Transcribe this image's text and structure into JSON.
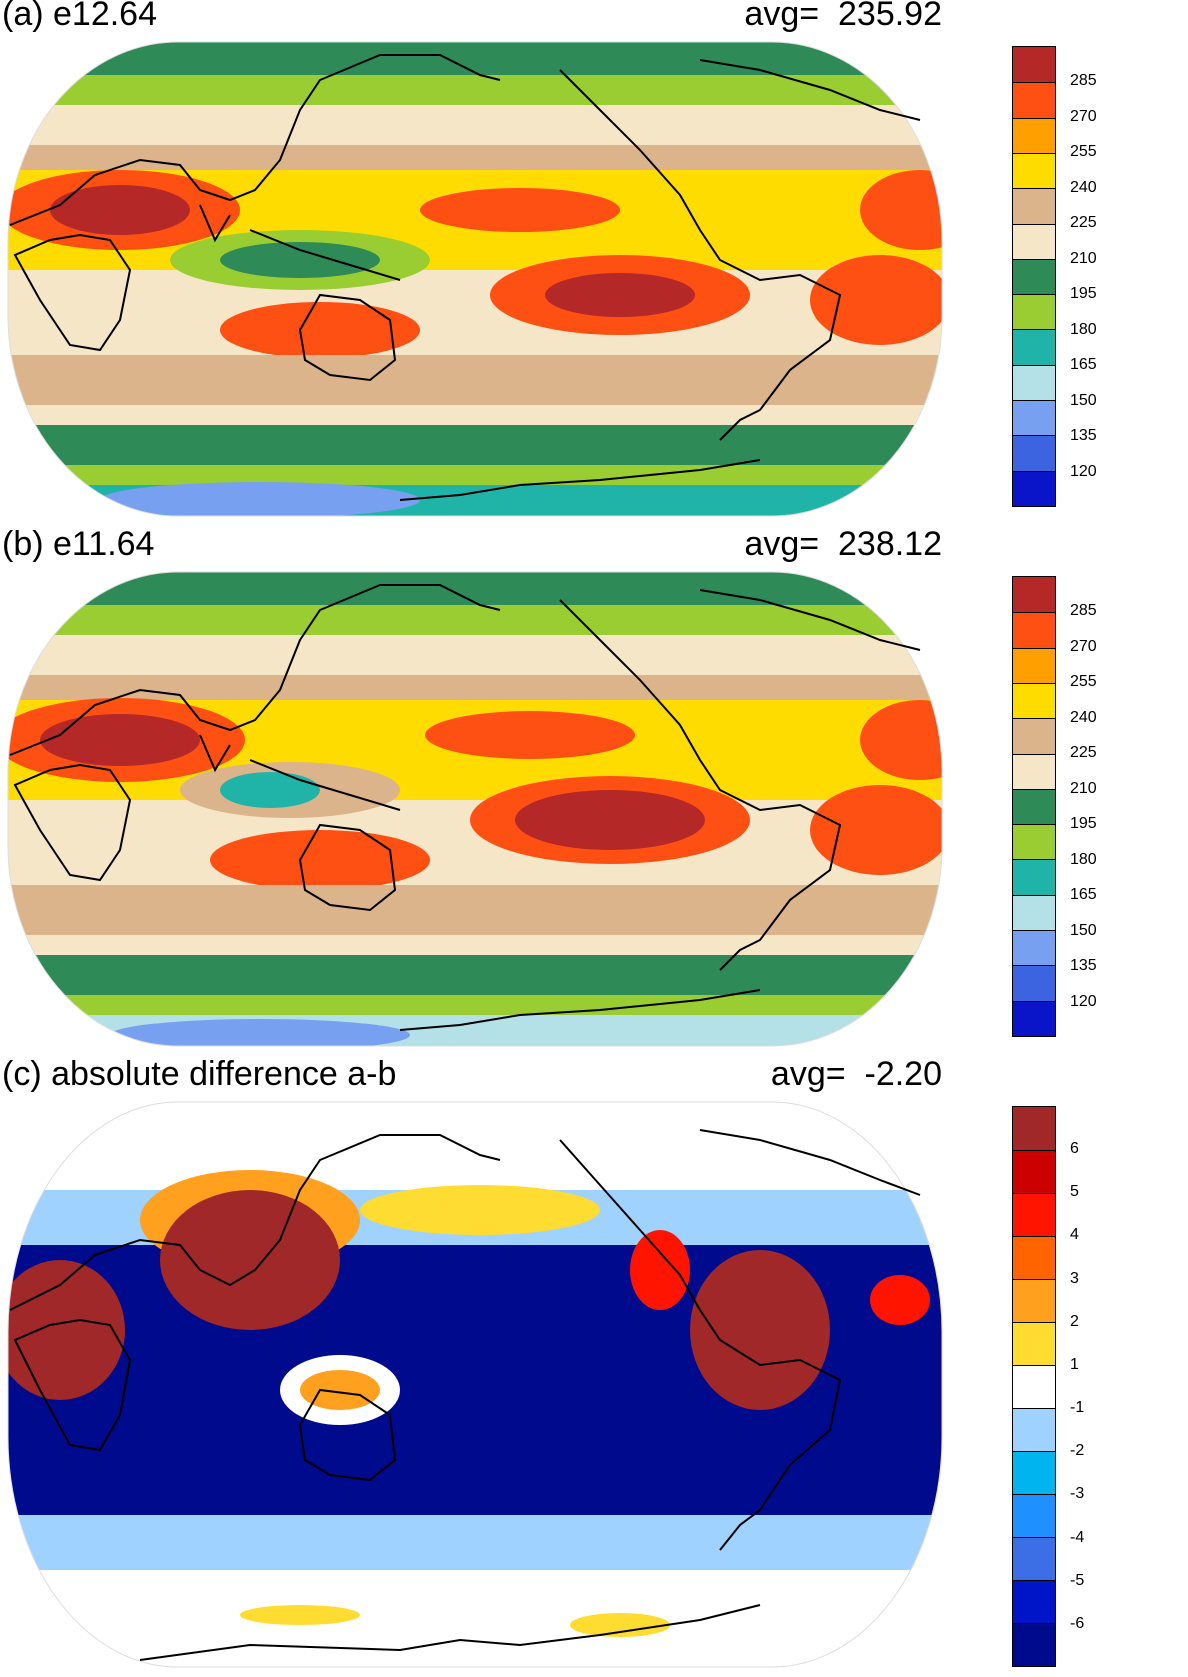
{
  "panels": [
    {
      "title": "(a) e12.64",
      "avg_label": "avg=",
      "avg_value": "235.92",
      "colorbar": {
        "colors": [
          "#0a14c8",
          "#3c64e0",
          "#78a0f0",
          "#b4e0e8",
          "#20b4a8",
          "#9acd32",
          "#2e8b57",
          "#f5e6c8",
          "#dcb48c",
          "#ffdc00",
          "#ffa000",
          "#ff5014",
          "#b42828"
        ],
        "ticks": [
          "120",
          "135",
          "150",
          "165",
          "180",
          "195",
          "210",
          "225",
          "240",
          "255",
          "270",
          "285"
        ]
      }
    },
    {
      "title": "(b) e11.64",
      "avg_label": "avg=",
      "avg_value": "238.12",
      "colorbar": {
        "colors": [
          "#0a14c8",
          "#3c64e0",
          "#78a0f0",
          "#b4e0e8",
          "#20b4a8",
          "#9acd32",
          "#2e8b57",
          "#f5e6c8",
          "#dcb48c",
          "#ffdc00",
          "#ffa000",
          "#ff5014",
          "#b42828"
        ],
        "ticks": [
          "120",
          "135",
          "150",
          "165",
          "180",
          "195",
          "210",
          "225",
          "240",
          "255",
          "270",
          "285"
        ]
      }
    },
    {
      "title": "(c) absolute difference a-b",
      "avg_label": "avg=",
      "avg_value": "-2.20",
      "colorbar": {
        "colors": [
          "#000a8c",
          "#0014c8",
          "#3c6ee6",
          "#1e90ff",
          "#00b4f0",
          "#a0d2ff",
          "#ffffff",
          "#ffdc32",
          "#ffa01e",
          "#ff6400",
          "#ff1400",
          "#cd0000",
          "#a02828"
        ],
        "ticks": [
          "-6",
          "-5",
          "-4",
          "-3",
          "-2",
          "-1",
          "1",
          "2",
          "3",
          "4",
          "5",
          "6"
        ]
      }
    }
  ]
}
